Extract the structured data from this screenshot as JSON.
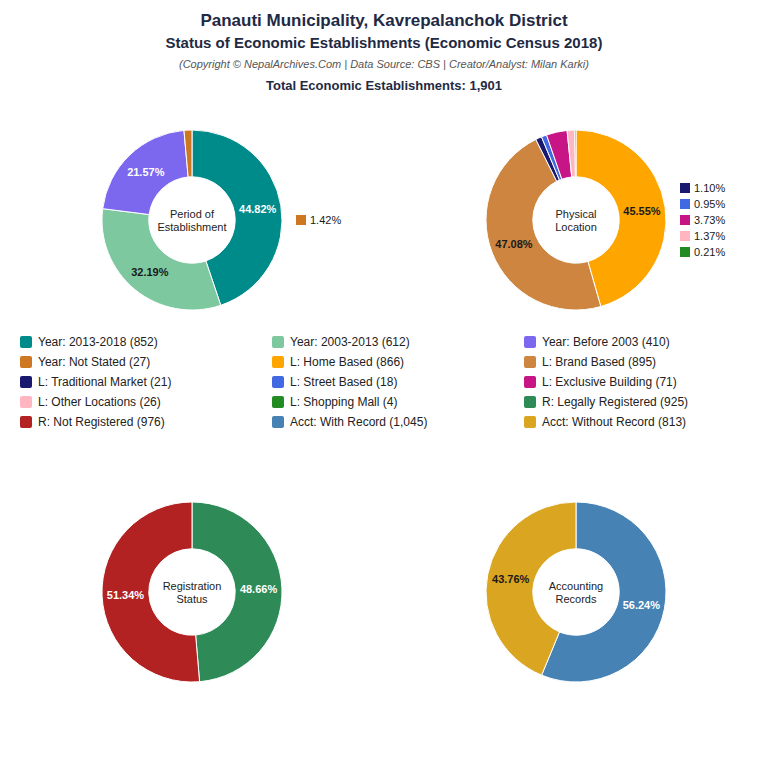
{
  "title": "Panauti Municipality, Kavrepalanchok District\nStatus of Economic Establishments (Economic Census 2018)",
  "subtitle": "(Copyright © NepalArchives.Com | Data Source: CBS | Creator/Analyst: Milan Karki)",
  "annotations": [
    "Total Economic Establishments: 1,901"
  ],
  "chart_data": [
    {
      "type": "pie",
      "title": "Period of\nEstablishment",
      "categories": [
        "Year: 2013-2018 (852)",
        "Year: 2003-2013 (612)",
        "Year: Before 2003 (410)",
        "Year: Not Stated (27)"
      ],
      "values": [
        44.82,
        32.19,
        21.57,
        1.42
      ],
      "value_labels": [
        "44.82%",
        "32.19%",
        "21.57%",
        "1.42%"
      ],
      "colors": [
        "#008B8B",
        "#7EC8A0",
        "#7B68EE",
        "#CD7722"
      ],
      "data_labels": true
    },
    {
      "type": "pie",
      "title": "Physical\nLocation",
      "categories": [
        "L: Home Based (866)",
        "L: Brand Based (895)",
        "L: Traditional Market (21)",
        "L: Street Based (18)",
        "L: Exclusive Building (71)",
        "L: Other Locations (26)",
        "L: Shopping Mall (4)"
      ],
      "values": [
        45.55,
        47.08,
        1.1,
        0.95,
        3.73,
        1.37,
        0.21
      ],
      "value_labels": [
        "45.55%",
        "47.08%",
        "1.10%",
        "0.95%",
        "3.73%",
        "1.37%",
        "0.21%"
      ],
      "colors": [
        "#FFA500",
        "#CD853F",
        "#191970",
        "#4169E1",
        "#C71585",
        "#FFB6C1",
        "#228B22"
      ],
      "data_labels": true
    },
    {
      "type": "pie",
      "title": "Registration\nStatus",
      "categories": [
        "R: Legally Registered (925)",
        "R: Not Registered (976)"
      ],
      "values": [
        48.66,
        51.34
      ],
      "value_labels": [
        "48.66%",
        "51.34%"
      ],
      "colors": [
        "#2E8B57",
        "#B22222"
      ],
      "data_labels": true
    },
    {
      "type": "pie",
      "title": "Accounting\nRecords",
      "categories": [
        "Acct: With Record (1,045)",
        "Acct: Without Record (813)"
      ],
      "values": [
        56.24,
        43.76
      ],
      "value_labels": [
        "56.24%",
        "43.76%"
      ],
      "colors": [
        "#4682B4",
        "#DAA520"
      ],
      "data_labels": true
    }
  ]
}
